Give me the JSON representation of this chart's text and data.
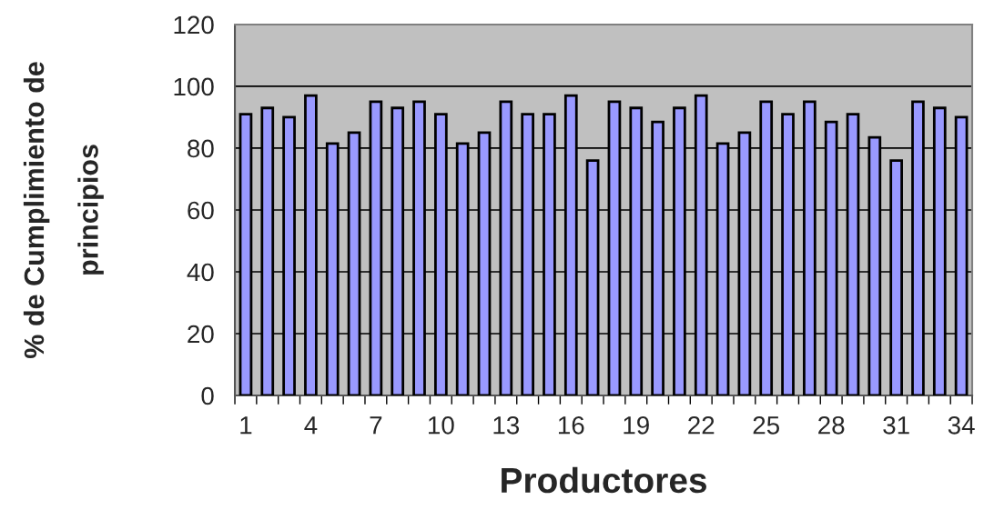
{
  "chart_data": {
    "type": "bar",
    "xlabel": "Productores",
    "ylabel": "% de Cumplimiento de\nprincipios",
    "categories": [
      "1",
      null,
      null,
      "4",
      null,
      null,
      "7",
      null,
      null,
      "10",
      null,
      null,
      "13",
      null,
      null,
      "16",
      null,
      null,
      "19",
      null,
      null,
      "22",
      null,
      null,
      "25",
      null,
      null,
      "28",
      null,
      null,
      "31",
      null,
      null,
      "34"
    ],
    "values": [
      91,
      93,
      90,
      97,
      81.5,
      85,
      95,
      93,
      95,
      91,
      81.5,
      85,
      95,
      91,
      91,
      97,
      76,
      95,
      93,
      88.5,
      93,
      97,
      81.5,
      85,
      95,
      91,
      95,
      88.5,
      91,
      83.5,
      76,
      95,
      93,
      90
    ],
    "color": "#9999ff",
    "ylim": [
      0,
      120
    ],
    "yticks": [
      0,
      20,
      40,
      60,
      80,
      100,
      120
    ],
    "grid": "y"
  }
}
